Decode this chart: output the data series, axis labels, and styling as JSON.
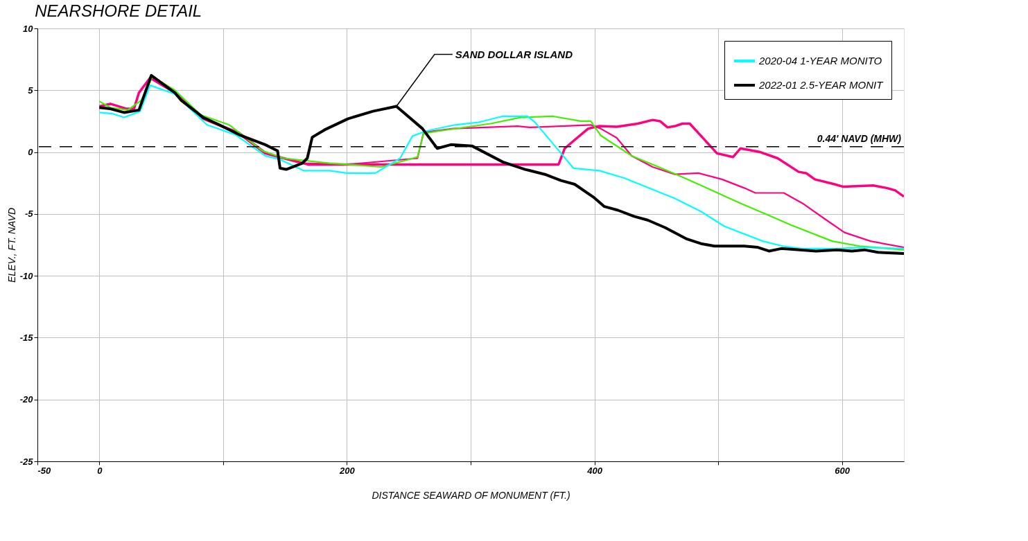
{
  "chart_data": {
    "type": "line",
    "title": "NEARSHORE DETAIL",
    "xlabel": "DISTANCE SEAWARD OF MONUMENT (FT.)",
    "ylabel": "ELEV., FT. NAVD",
    "xlim": [
      -50,
      650
    ],
    "ylim": [
      -25,
      10
    ],
    "xticks": [
      -50,
      0,
      {
        "value": 100,
        "label": null
      },
      200,
      {
        "value": 300,
        "label": null
      },
      400,
      {
        "value": 500,
        "label": null
      },
      600
    ],
    "yticks": [
      -25,
      -20,
      -15,
      -10,
      -5,
      0,
      5,
      10
    ],
    "grid": true,
    "legend": "top right",
    "marker": "none",
    "line_style": "solid",
    "ref_lines": [
      {
        "axis": "y",
        "value": 0.44,
        "label": "0.44' NAVD (MHW)",
        "color": "#000000",
        "line_style": "dashed"
      }
    ],
    "annotations": [
      {
        "text": "SAND DOLLAR ISLAND",
        "x": 240,
        "y": 3.7
      }
    ],
    "series": [
      {
        "color": "#ff0080",
        "x": [
          0,
          9,
          22,
          28,
          32,
          41,
          61,
          84,
          113,
          134,
          149,
          169,
          200,
          371,
          376,
          383,
          395,
          404,
          418,
          435,
          447,
          453,
          459,
          465,
          471,
          477,
          488,
          499,
          512,
          518,
          534,
          548,
          565,
          571,
          578,
          594,
          601,
          625,
          636,
          643,
          650
        ],
        "values": [
          3.7,
          3.9,
          3.5,
          3.5,
          4.8,
          6.0,
          4.8,
          2.7,
          1.5,
          -0.1,
          -0.5,
          -1.0,
          -1.0,
          -1.0,
          0.3,
          0.9,
          1.9,
          2.1,
          2.05,
          2.3,
          2.6,
          2.5,
          2.0,
          2.1,
          2.3,
          2.3,
          1.1,
          -0.1,
          -0.4,
          0.3,
          0.0,
          -0.5,
          -1.6,
          -1.7,
          -2.2,
          -2.6,
          -2.8,
          -2.7,
          -2.9,
          -3.1,
          -3.6
        ]
      },
      {
        "color": "#ff0080",
        "x": [
          0,
          9,
          22,
          28,
          32,
          41,
          61,
          84,
          113,
          134,
          149,
          164,
          200,
          257,
          262,
          286,
          338,
          348,
          373,
          397,
          405,
          418,
          430,
          447,
          465,
          484,
          503,
          521,
          530,
          553,
          569,
          586,
          602,
          623,
          650
        ],
        "values": [
          3.7,
          3.9,
          3.5,
          3.5,
          4.8,
          6.0,
          4.8,
          2.7,
          1.6,
          0.0,
          -0.5,
          -0.9,
          -1.0,
          -0.5,
          1.6,
          1.9,
          2.1,
          2.0,
          2.1,
          2.2,
          1.9,
          1.15,
          -0.3,
          -1.2,
          -1.8,
          -1.7,
          -2.2,
          -2.9,
          -3.3,
          -3.3,
          -4.2,
          -5.4,
          -6.5,
          -7.2,
          -7.7
        ]
      },
      {
        "color": "#44ee00",
        "x": [
          0,
          9,
          23,
          34,
          43,
          61,
          82,
          105,
          132,
          149,
          186,
          200,
          228,
          257,
          262,
          274,
          316,
          340,
          366,
          389,
          397,
          405,
          430,
          447,
          466,
          493,
          517,
          538,
          559,
          592,
          614,
          650
        ],
        "values": [
          4.1,
          3.6,
          3.4,
          4.2,
          6.1,
          5.0,
          3.0,
          2.2,
          0.1,
          -0.5,
          -0.9,
          -1.0,
          -1.2,
          -0.4,
          1.5,
          1.7,
          2.3,
          2.8,
          2.9,
          2.5,
          2.5,
          1.35,
          -0.3,
          -1.0,
          -1.8,
          -3.0,
          -4.1,
          -5.0,
          -5.9,
          -7.2,
          -7.6,
          -7.9
        ]
      },
      {
        "name": "2020-04 1-YEAR MONITO",
        "color": "#00ffff",
        "x": [
          0,
          11,
          20,
          33,
          41,
          61,
          87,
          110,
          134,
          146,
          165,
          186,
          200,
          223,
          243,
          253,
          264,
          287,
          306,
          326,
          346,
          352,
          368,
          383,
          404,
          424,
          465,
          486,
          505,
          536,
          552,
          567,
          596,
          617,
          650
        ],
        "values": [
          3.2,
          3.1,
          2.8,
          3.3,
          5.4,
          4.7,
          2.2,
          1.4,
          -0.3,
          -0.6,
          -1.5,
          -1.5,
          -1.7,
          -1.7,
          -0.5,
          1.3,
          1.7,
          2.2,
          2.4,
          2.9,
          2.9,
          2.4,
          0.5,
          -1.3,
          -1.5,
          -2.1,
          -3.75,
          -4.8,
          -6.0,
          -7.2,
          -7.6,
          -7.8,
          -7.8,
          -7.7,
          -7.8
        ]
      },
      {
        "name": "2022-01 2.5-YEAR MONIT",
        "color": "#000000",
        "x": [
          0,
          9,
          20,
          32,
          42,
          61,
          66,
          84,
          97,
          113,
          134,
          144,
          146,
          151,
          164,
          168,
          172,
          182,
          201,
          221,
          240,
          261,
          273,
          284,
          301,
          326,
          344,
          360,
          373,
          384,
          400,
          408,
          419,
          432,
          443,
          457,
          474,
          486,
          497,
          521,
          532,
          541,
          551,
          579,
          596,
          608,
          618,
          629,
          650
        ],
        "values": [
          3.6,
          3.5,
          3.2,
          3.4,
          6.2,
          4.8,
          4.2,
          2.8,
          2.2,
          1.4,
          0.6,
          0.1,
          -1.3,
          -1.4,
          -0.9,
          -0.5,
          1.2,
          1.8,
          2.7,
          3.3,
          3.7,
          1.9,
          0.3,
          0.6,
          0.5,
          -0.8,
          -1.4,
          -1.8,
          -2.3,
          -2.6,
          -3.7,
          -4.4,
          -4.7,
          -5.2,
          -5.5,
          -6.1,
          -7.0,
          -7.4,
          -7.6,
          -7.6,
          -7.7,
          -8.0,
          -7.8,
          -8.0,
          -7.9,
          -8.0,
          -7.9,
          -8.1,
          -8.2
        ]
      }
    ]
  }
}
